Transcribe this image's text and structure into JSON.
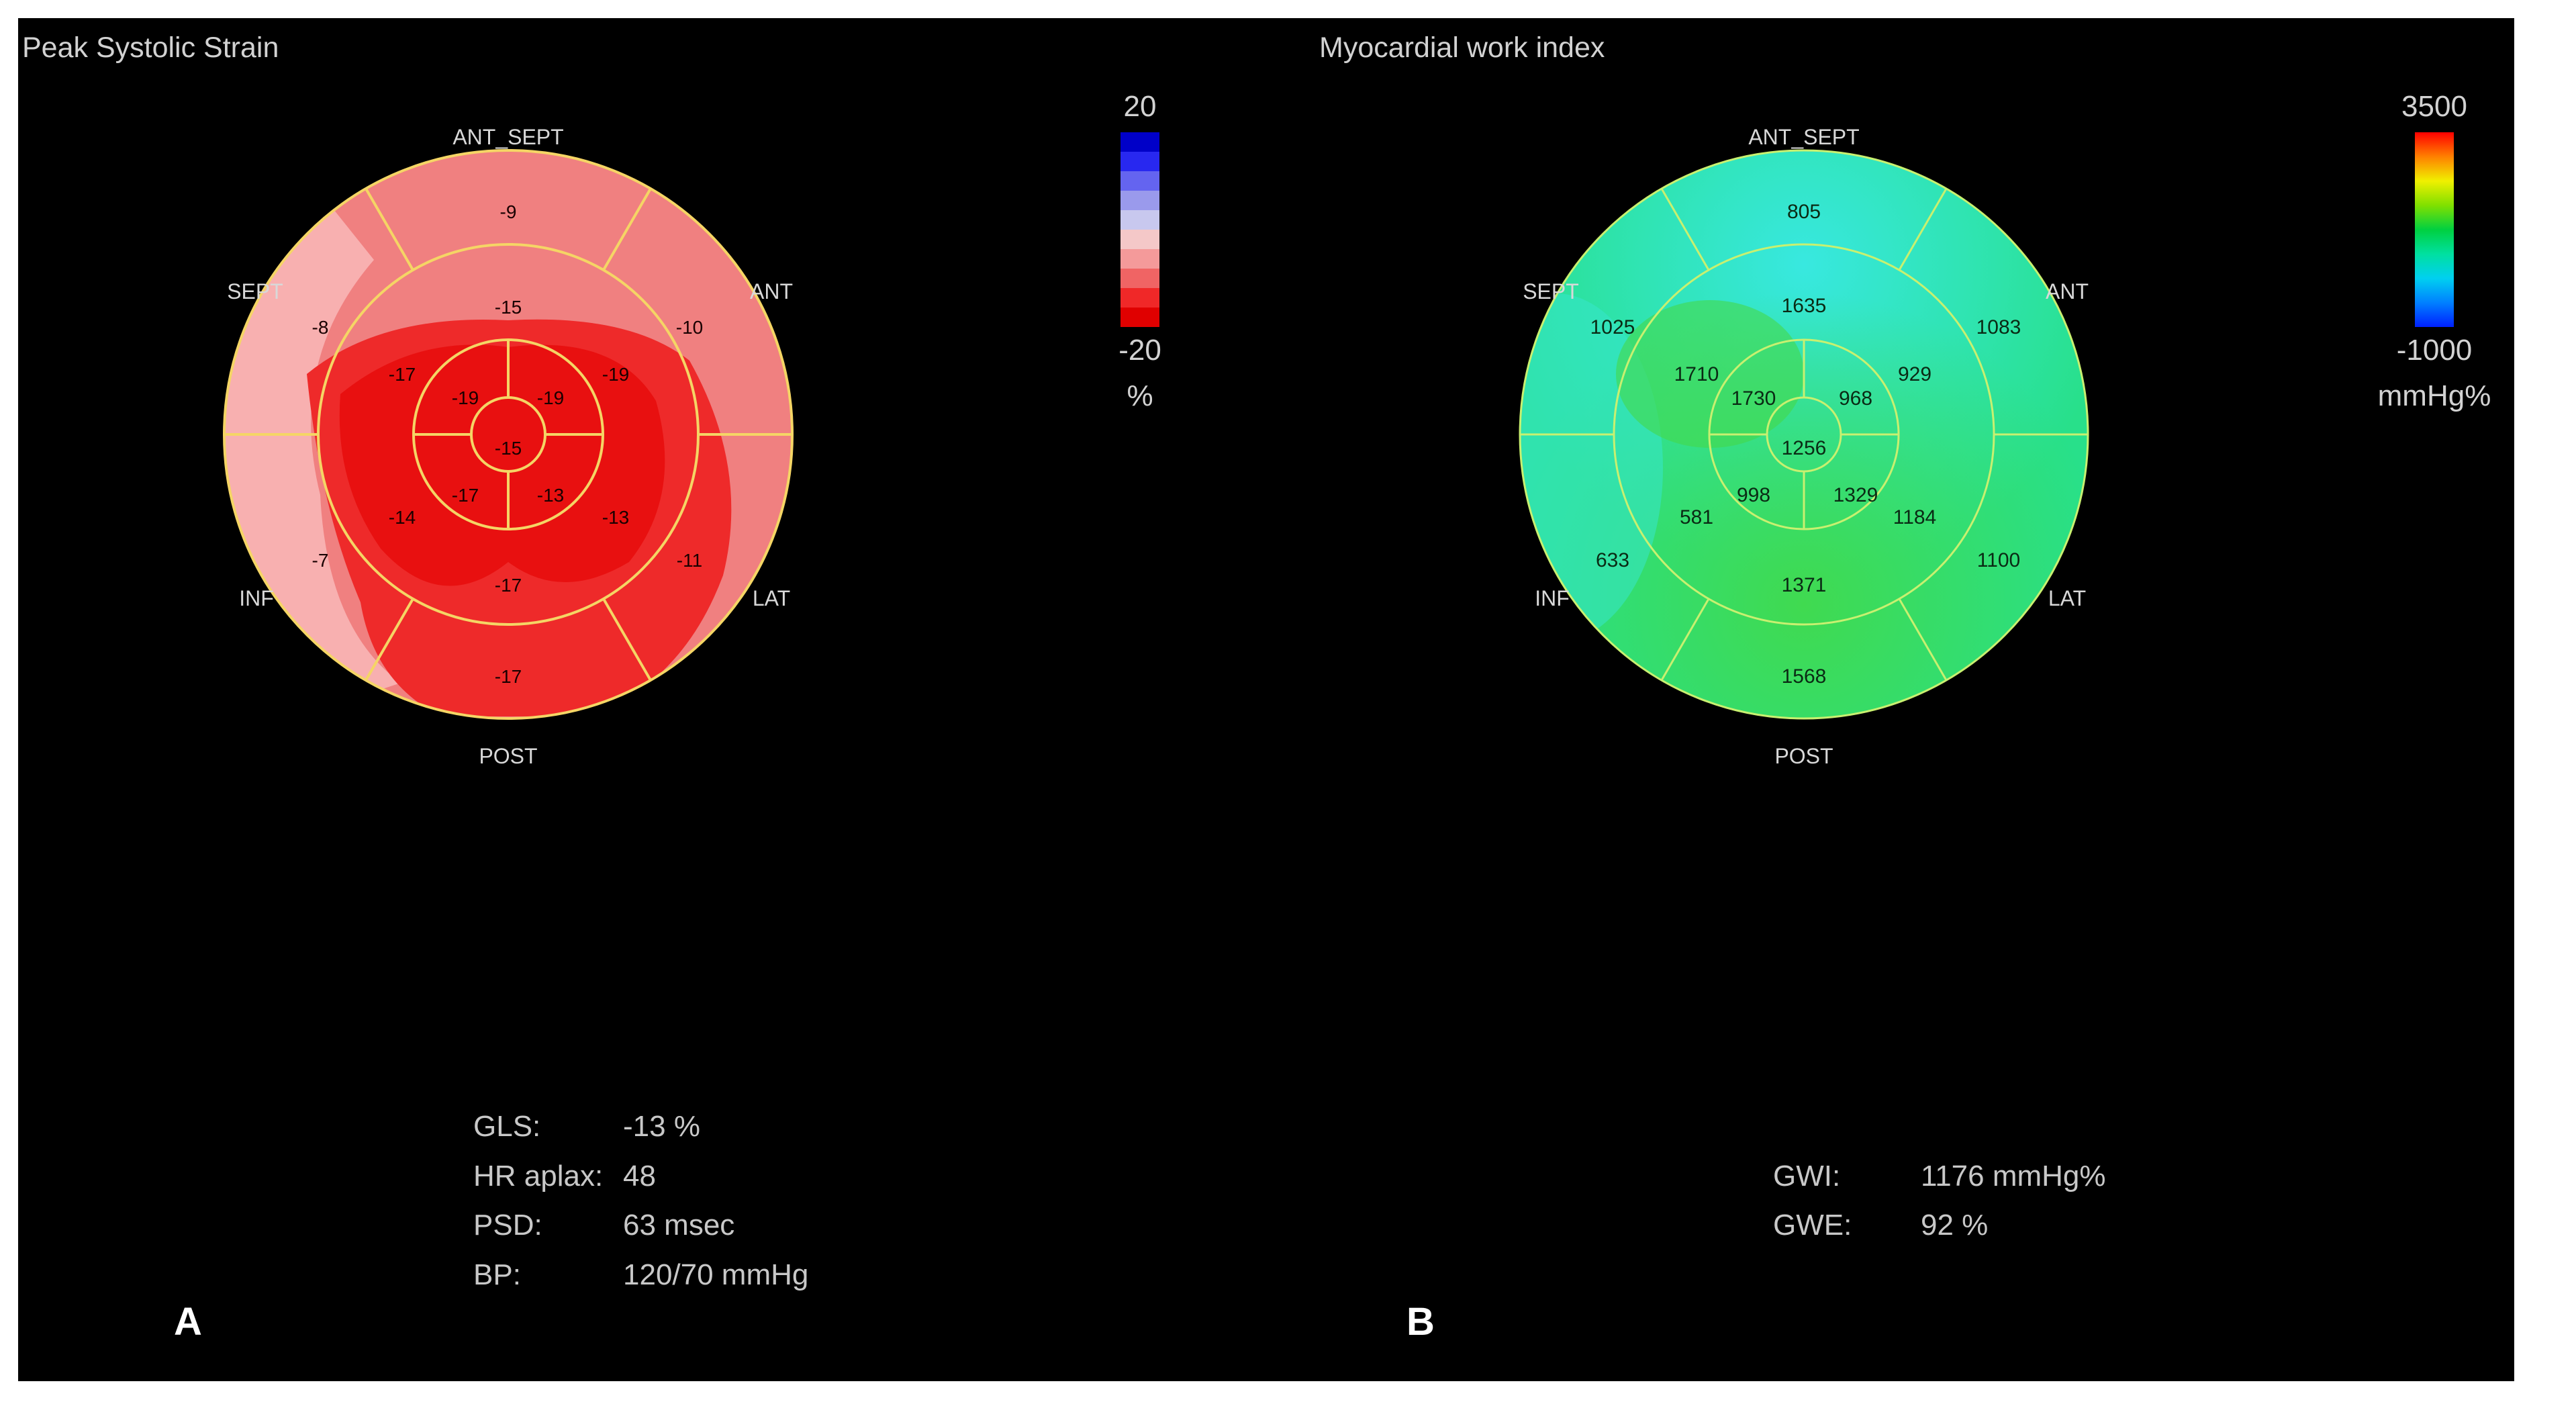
{
  "panels": {
    "strain": {
      "letter": "A",
      "title": "Peak Systolic Strain",
      "wall_labels": {
        "top": "ANT_SEPT",
        "upper_left": "SEPT",
        "upper_right": "ANT",
        "lower_left": "INF",
        "lower_right": "LAT",
        "bottom": "POST"
      },
      "segments": {
        "basal": [
          "-9",
          "-10",
          "-11",
          "-17",
          "-7",
          "-8"
        ],
        "mid": [
          "-15",
          "-19",
          "-13",
          "-17",
          "-14",
          "-17"
        ],
        "apical": [
          "-19",
          "-13",
          "-17",
          "-19"
        ],
        "apex": "-15"
      },
      "scale": {
        "max": "20",
        "min": "-20",
        "unit": "%",
        "colors": [
          "#0000c8",
          "#2828f0",
          "#6464f0",
          "#9a9aec",
          "#c8c8ee",
          "#f4c8c8",
          "#f49a9a",
          "#f06464",
          "#f02828",
          "#e00000"
        ]
      },
      "stats": [
        {
          "label": "GLS:",
          "value": "-13 %"
        },
        {
          "label": "HR aplax:",
          "value": "48"
        },
        {
          "label": "PSD:",
          "value": "63 msec"
        },
        {
          "label": "BP:",
          "value": "120/70 mmHg"
        }
      ],
      "colors": {
        "base": "#f08080",
        "deep": "#ee2a2a",
        "core": "#e81010",
        "pale": "#f8b0b0",
        "line": "#f5d565"
      }
    },
    "work": {
      "letter": "B",
      "title": "Myocardial work index",
      "wall_labels": {
        "top": "ANT_SEPT",
        "upper_left": "SEPT",
        "upper_right": "ANT",
        "lower_left": "INF",
        "lower_right": "LAT",
        "bottom": "POST"
      },
      "segments": {
        "basal": [
          "805",
          "1083",
          "1100",
          "1568",
          "633",
          "1025"
        ],
        "mid": [
          "1635",
          "929",
          "1184",
          "1371",
          "581",
          "1710"
        ],
        "apical": [
          "968",
          "1329",
          "998",
          "1730"
        ],
        "apex": "1256"
      },
      "scale": {
        "max": "3500",
        "min": "-1000",
        "unit": "mmHg%",
        "colors": [
          "#ff0000",
          "#ff8000",
          "#f0f000",
          "#80e000",
          "#00d040",
          "#00e0a0",
          "#00d0f0",
          "#0080ff",
          "#0020ff"
        ]
      },
      "stats": [
        {
          "label": "GWI:",
          "value": "1176 mmHg%"
        },
        {
          "label": "GWE:",
          "value": "92 %"
        }
      ],
      "colors": {
        "base": "#28e08a",
        "cyan": "#30e6d2",
        "greenish": "#3ed85a",
        "line": "#c8f070"
      }
    }
  }
}
